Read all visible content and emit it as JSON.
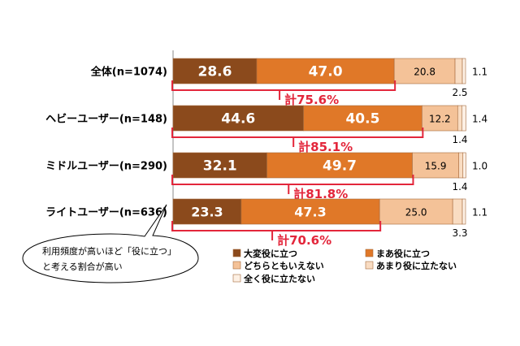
{
  "chart_data": {
    "type": "bar",
    "orientation": "horizontal",
    "stacked": true,
    "categories": [
      "全体(n=1074)",
      "ヘビーユーザー(n=148)",
      "ミドルユーザー(n=290)",
      "ライトユーザー(n=636)"
    ],
    "series": [
      {
        "name": "大変役に立つ",
        "color": "#8b4a1c",
        "values": [
          28.6,
          44.6,
          32.1,
          23.3
        ]
      },
      {
        "name": "まあ役に立つ",
        "color": "#e07828",
        "values": [
          47.0,
          40.5,
          49.7,
          47.3
        ]
      },
      {
        "name": "どちらともいえない",
        "color": "#f4c298",
        "values": [
          20.8,
          12.2,
          15.9,
          25.0
        ]
      },
      {
        "name": "あまり役に立たない",
        "color": "#f9dcc2",
        "values": [
          2.5,
          1.4,
          1.4,
          3.3
        ]
      },
      {
        "name": "全く役に立たない",
        "color": "#fdf0e4",
        "values": [
          1.1,
          1.4,
          1.0,
          1.1
        ]
      }
    ],
    "value_labels": [
      [
        "28.6",
        "47.0",
        "20.8",
        "2.5",
        "1.1"
      ],
      [
        "44.6",
        "40.5",
        "12.2",
        "1.4",
        "1.4"
      ],
      [
        "32.1",
        "49.7",
        "15.9",
        "1.4",
        "1.0"
      ],
      [
        "23.3",
        "47.3",
        "25.0",
        "3.3",
        "1.1"
      ]
    ],
    "totals": [
      "計75.6%",
      "計85.1%",
      "計81.8%",
      "計70.6%"
    ],
    "xlim": [
      0,
      100
    ],
    "legend_position": "bottom",
    "accent_color": "#e3263b"
  },
  "callout": {
    "line1": "利用頻度が高いほど「役に立つ」",
    "line2": "と考える割合が高い"
  }
}
